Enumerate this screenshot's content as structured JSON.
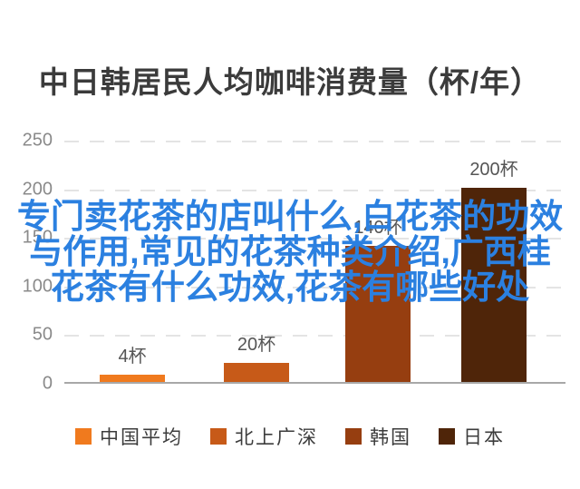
{
  "chart": {
    "title": "中日韩居民人均咖啡消费量（杯/年）"
  },
  "chart_data": {
    "type": "bar",
    "title": "中日韩居民人均咖啡消费量（杯/年）",
    "categories": [
      "中国平均",
      "北上广深",
      "韩国",
      "日本"
    ],
    "values": [
      4,
      20,
      140,
      200
    ],
    "value_labels": [
      "4杯",
      "20杯",
      "140杯",
      "200杯"
    ],
    "bar_colors": [
      "#F07A1E",
      "#C75A18",
      "#963E10",
      "#4F2509"
    ],
    "ylabel": "",
    "xlabel": "",
    "ylim": [
      0,
      250
    ],
    "y_ticks": [
      250,
      200,
      150,
      100,
      50,
      0
    ],
    "grid": "horizontal-dashed",
    "legend_position": "bottom"
  },
  "overlay": {
    "color": "#2b80e0",
    "lines": [
      "专门卖花茶的店叫什么,白花茶的功效",
      "与作用,常见的花茶种类介绍,广西桂",
      "花茶有什么功效,花茶有哪些好处"
    ]
  }
}
